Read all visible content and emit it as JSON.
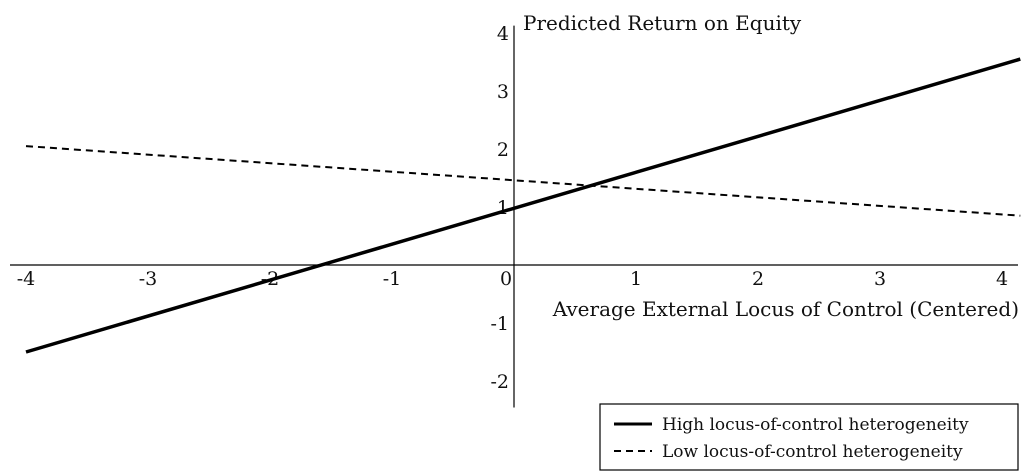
{
  "chart_data": {
    "type": "line",
    "title": "",
    "xlabel": "Average External Locus of Control (Centered)",
    "ylabel": "Predicted Return on Equity",
    "xlim": [
      -4.05,
      4.15
    ],
    "ylim": [
      -2.25,
      4.3
    ],
    "x_ticks": [
      -4,
      -3,
      -2,
      -1,
      0,
      1,
      2,
      3,
      4
    ],
    "x_tick_labels": [
      "-4",
      "-3",
      "-2",
      "-1",
      "0",
      "1",
      "2",
      "3",
      "4"
    ],
    "y_ticks": [
      4,
      3,
      2,
      1,
      -1,
      -2
    ],
    "y_tick_labels": [
      "4",
      "3",
      "2",
      "1",
      "-1",
      "-2"
    ],
    "grid": false,
    "legend_position": "bottom-right",
    "series": [
      {
        "name": "High locus-of-control heterogeneity",
        "style": "solid",
        "color": "#000000",
        "x": [
          -4,
          4.15
        ],
        "y": [
          -1.5,
          3.55
        ]
      },
      {
        "name": "Low locus-of-control heterogeneity",
        "style": "dashed",
        "color": "#000000",
        "x": [
          -4,
          4.15
        ],
        "y": [
          2.05,
          0.85
        ]
      }
    ]
  }
}
